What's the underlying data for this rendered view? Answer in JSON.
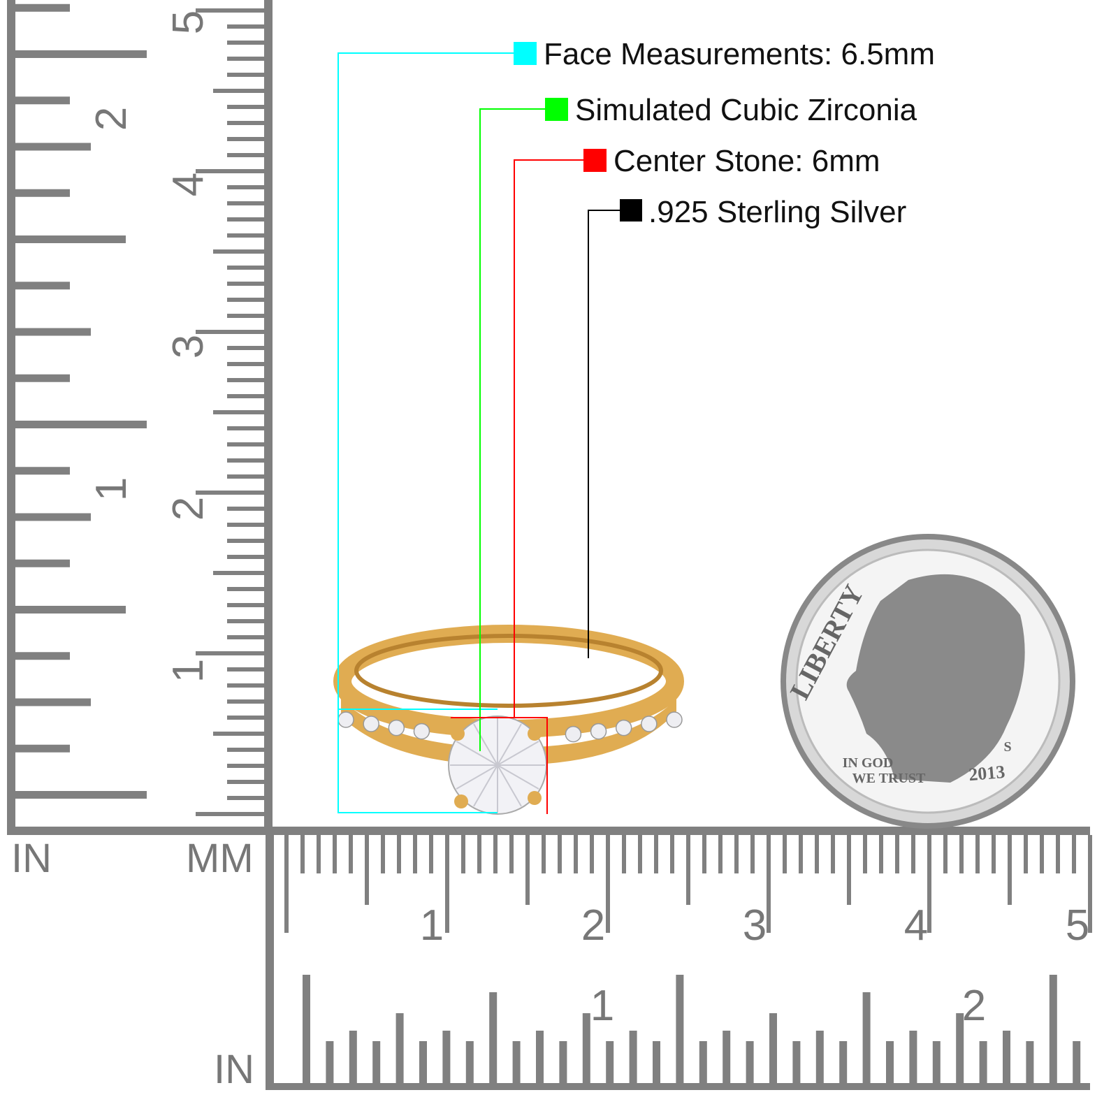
{
  "legend": [
    {
      "label": "Face Measurements: 6.5mm",
      "color": "#00ffff"
    },
    {
      "label": "Simulated Cubic Zirconia",
      "color": "#00ff00"
    },
    {
      "label": "Center Stone: 6mm",
      "color": "#ff0000"
    },
    {
      "label": ".925 Sterling Silver",
      "color": "#000000"
    }
  ],
  "rulers": {
    "color": "#808080",
    "in_label": "IN",
    "mm_label": "MM",
    "bottom_in_label": "IN",
    "vertical_in_numbers": [
      "1",
      "2"
    ],
    "vertical_mm_numbers": [
      "1",
      "2",
      "3",
      "4",
      "5"
    ],
    "horizontal_mm_numbers": [
      "1",
      "2",
      "3",
      "4",
      "5"
    ],
    "horizontal_in_numbers": [
      "1",
      "2"
    ]
  },
  "coin": {
    "top_text": "LIBERTY",
    "motto_line1": "IN GOD",
    "motto_line2": "WE TRUST",
    "year": "2013",
    "mint_mark": "S"
  },
  "ring": {
    "metal_color": "#e0ac52",
    "stone_color": "#f2f2f6"
  }
}
